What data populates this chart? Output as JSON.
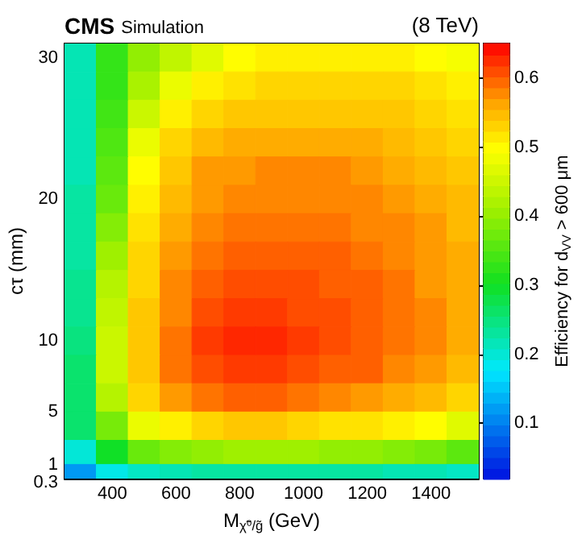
{
  "chart_data": {
    "type": "heatmap",
    "title": "CMS",
    "subtitle": "Simulation",
    "annotations": [
      "(8 TeV)"
    ],
    "xlabel": "M$_{χ̃⁰/g̃}$ (GeV)",
    "ylabel": "cτ (mm)",
    "clabel": "Efficiency for d$_{VV}$ > 600 μm",
    "x": [
      300,
      400,
      500,
      600,
      700,
      800,
      900,
      1000,
      1100,
      1200,
      1300,
      1400,
      1500
    ],
    "y": [
      30,
      28,
      26,
      24,
      22,
      20,
      18,
      16,
      14,
      12,
      10,
      8,
      6,
      4,
      2,
      0.6
    ],
    "xlim": [
      250,
      1550
    ],
    "xticks": [
      400,
      600,
      800,
      1000,
      1200,
      1400
    ],
    "ylim": [
      0.3,
      31
    ],
    "yticks": [
      0.3,
      1,
      5,
      10,
      20,
      30
    ],
    "clim": [
      0.02,
      0.65
    ],
    "cticks": [
      0.1,
      0.2,
      0.3,
      0.4,
      0.5,
      0.6
    ],
    "cells": [
      [
        0.22,
        0.33,
        0.4,
        0.44,
        0.47,
        0.5,
        0.51,
        0.51,
        0.51,
        0.51,
        0.51,
        0.5,
        0.49
      ],
      [
        0.22,
        0.33,
        0.42,
        0.48,
        0.51,
        0.52,
        0.53,
        0.53,
        0.53,
        0.53,
        0.53,
        0.52,
        0.51
      ],
      [
        0.22,
        0.34,
        0.45,
        0.51,
        0.53,
        0.54,
        0.54,
        0.54,
        0.54,
        0.54,
        0.54,
        0.53,
        0.52
      ],
      [
        0.22,
        0.35,
        0.48,
        0.53,
        0.55,
        0.56,
        0.56,
        0.56,
        0.56,
        0.56,
        0.55,
        0.54,
        0.53
      ],
      [
        0.22,
        0.36,
        0.5,
        0.54,
        0.57,
        0.57,
        0.58,
        0.58,
        0.58,
        0.57,
        0.56,
        0.55,
        0.54
      ],
      [
        0.23,
        0.37,
        0.51,
        0.55,
        0.57,
        0.58,
        0.58,
        0.58,
        0.58,
        0.58,
        0.57,
        0.56,
        0.55
      ],
      [
        0.23,
        0.39,
        0.52,
        0.56,
        0.58,
        0.59,
        0.59,
        0.59,
        0.59,
        0.58,
        0.58,
        0.57,
        0.55
      ],
      [
        0.23,
        0.41,
        0.53,
        0.57,
        0.59,
        0.6,
        0.6,
        0.6,
        0.6,
        0.59,
        0.58,
        0.57,
        0.56
      ],
      [
        0.24,
        0.43,
        0.53,
        0.58,
        0.6,
        0.61,
        0.61,
        0.61,
        0.6,
        0.6,
        0.59,
        0.57,
        0.56
      ],
      [
        0.24,
        0.44,
        0.54,
        0.58,
        0.61,
        0.62,
        0.62,
        0.61,
        0.61,
        0.6,
        0.59,
        0.58,
        0.56
      ],
      [
        0.25,
        0.45,
        0.54,
        0.59,
        0.62,
        0.63,
        0.63,
        0.62,
        0.61,
        0.6,
        0.59,
        0.58,
        0.56
      ],
      [
        0.26,
        0.45,
        0.54,
        0.59,
        0.61,
        0.62,
        0.62,
        0.61,
        0.6,
        0.6,
        0.58,
        0.57,
        0.55
      ],
      [
        0.26,
        0.43,
        0.53,
        0.57,
        0.59,
        0.6,
        0.6,
        0.59,
        0.58,
        0.57,
        0.56,
        0.55,
        0.53
      ],
      [
        0.26,
        0.38,
        0.48,
        0.51,
        0.53,
        0.54,
        0.54,
        0.53,
        0.52,
        0.52,
        0.51,
        0.5,
        0.47
      ],
      [
        0.2,
        0.3,
        0.37,
        0.39,
        0.4,
        0.41,
        0.41,
        0.41,
        0.4,
        0.4,
        0.39,
        0.38,
        0.36
      ],
      [
        0.12,
        0.19,
        0.21,
        0.22,
        0.23,
        0.23,
        0.23,
        0.23,
        0.23,
        0.23,
        0.22,
        0.22,
        0.21
      ]
    ]
  }
}
